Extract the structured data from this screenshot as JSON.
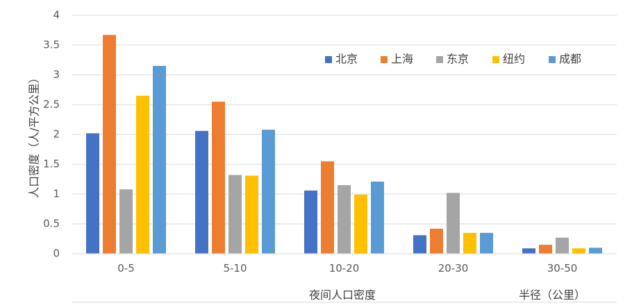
{
  "chart_data": {
    "type": "bar",
    "categories": [
      "0-5",
      "5-10",
      "10-20",
      "20-30",
      "30-50"
    ],
    "series": [
      {
        "name": "北京",
        "color": "#4472C4",
        "values": [
          2.02,
          2.06,
          1.06,
          0.31,
          0.09
        ]
      },
      {
        "name": "上海",
        "color": "#ED7D31",
        "values": [
          3.67,
          2.55,
          1.55,
          0.42,
          0.15
        ]
      },
      {
        "name": "东京",
        "color": "#A5A5A5",
        "values": [
          1.08,
          1.32,
          1.15,
          1.02,
          0.27
        ]
      },
      {
        "name": "纽约",
        "color": "#FFC000",
        "values": [
          2.65,
          1.31,
          0.99,
          0.35,
          0.09
        ]
      },
      {
        "name": "成都",
        "color": "#5B9BD5",
        "values": [
          3.15,
          2.08,
          1.21,
          0.35,
          0.1
        ]
      }
    ],
    "ylim": [
      0,
      4
    ],
    "yticks": [
      "0",
      "0.5",
      "1",
      "1.5",
      "2",
      "2.5",
      "3",
      "3.5",
      "4"
    ],
    "ylabel": "人口密度（人/平方公里）",
    "xlabel": "半径（公里）",
    "bottom_label": "夜间人口密度",
    "legend_position": "top-right",
    "grid": true
  }
}
